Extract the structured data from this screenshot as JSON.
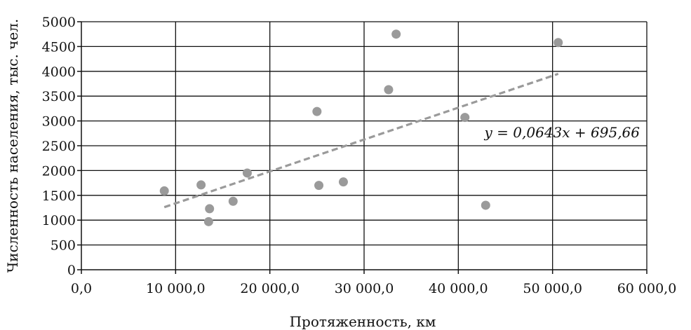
{
  "chart_data": {
    "type": "scatter",
    "title": "",
    "xlabel": "Протяженность, км",
    "ylabel": "Численность населения, тыс. чел.",
    "xlim": [
      0,
      60000
    ],
    "ylim": [
      0,
      5000
    ],
    "x_ticks": [
      0,
      10000,
      20000,
      30000,
      40000,
      50000,
      60000
    ],
    "x_tick_labels": [
      "0,0",
      "10 000,0",
      "20 000,0",
      "30 000,0",
      "40 000,0",
      "50 000,0",
      "60 000,0"
    ],
    "y_ticks": [
      0,
      500,
      1000,
      1500,
      2000,
      2500,
      3000,
      3500,
      4000,
      4500,
      5000
    ],
    "y_tick_labels": [
      "0",
      "500",
      "1000",
      "1500",
      "2000",
      "2500",
      "3000",
      "3500",
      "4000",
      "4500",
      "5000"
    ],
    "grid": true,
    "point_color": "#9a9a9a",
    "trend_color": "#9a9a9a",
    "series": [
      {
        "points": [
          {
            "x": 8800,
            "y": 1590
          },
          {
            "x": 12700,
            "y": 1710
          },
          {
            "x": 13600,
            "y": 1230
          },
          {
            "x": 13500,
            "y": 970
          },
          {
            "x": 16100,
            "y": 1380
          },
          {
            "x": 17600,
            "y": 1950
          },
          {
            "x": 25000,
            "y": 3190
          },
          {
            "x": 25200,
            "y": 1700
          },
          {
            "x": 27800,
            "y": 1770
          },
          {
            "x": 32600,
            "y": 3630
          },
          {
            "x": 33400,
            "y": 4750
          },
          {
            "x": 40700,
            "y": 3070
          },
          {
            "x": 42900,
            "y": 1300
          },
          {
            "x": 50600,
            "y": 4580
          }
        ]
      }
    ],
    "trendline": {
      "slope": 0.0643,
      "intercept": 695.66,
      "x_range": [
        8800,
        50600
      ],
      "equation_label": "y = 0,0643x + 695,66"
    }
  }
}
